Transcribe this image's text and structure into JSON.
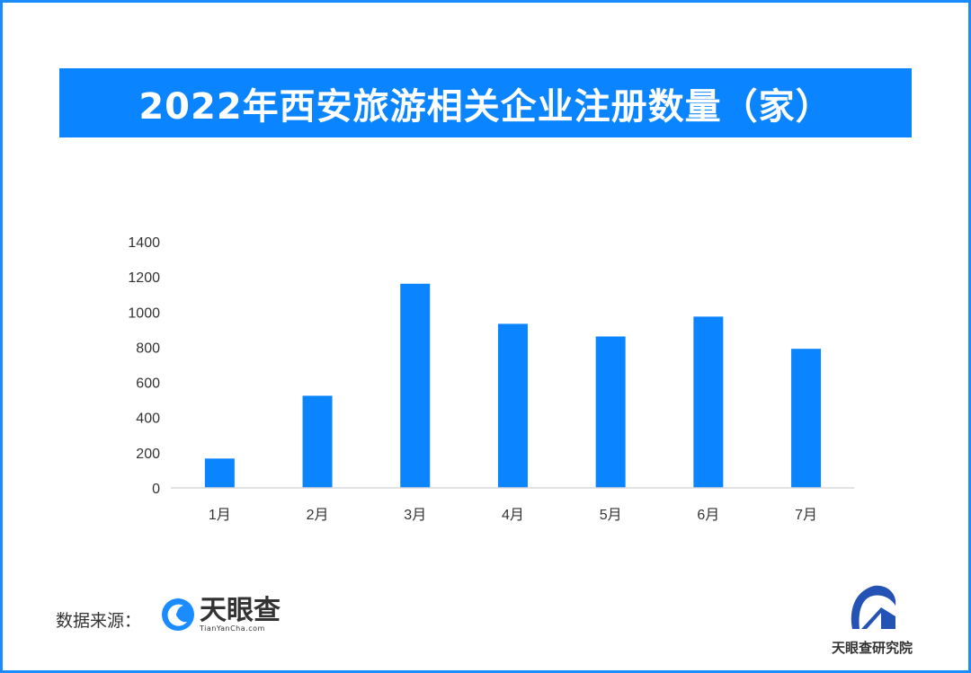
{
  "title": "2022年西安旅游相关企业注册数量（家）",
  "chart_data": {
    "type": "bar",
    "title": "2022年西安旅游相关企业注册数量（家）",
    "categories": [
      "1月",
      "2月",
      "3月",
      "4月",
      "5月",
      "6月",
      "7月"
    ],
    "values": [
      167,
      524,
      1161,
      933,
      861,
      974,
      791
    ],
    "yticks": [
      "0",
      "200",
      "400",
      "600",
      "800",
      "1000",
      "1200",
      "1400"
    ],
    "ylim": [
      0,
      1400
    ],
    "xlabel": "",
    "ylabel": "",
    "grid": false,
    "bar_color": "#0a84ff"
  },
  "footer": {
    "source_label": "数据来源：",
    "source_logo_name": "天眼查",
    "source_logo_url": "TianYanCha.com",
    "institute_name": "天眼查研究院"
  }
}
